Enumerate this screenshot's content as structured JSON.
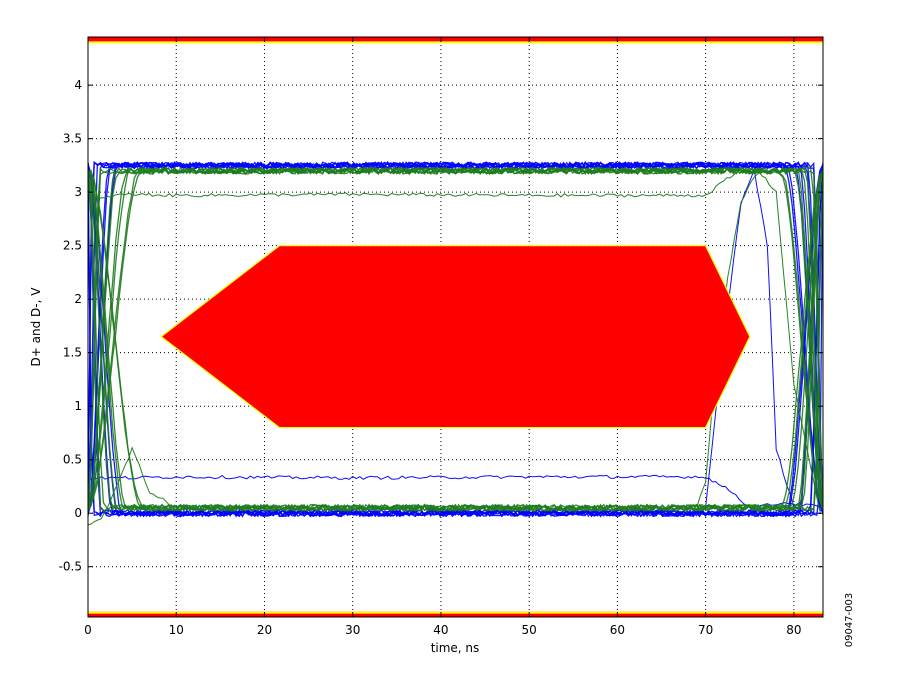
{
  "chart_data": {
    "type": "line",
    "title": "",
    "xlabel": "time, ns",
    "ylabel": "D+ and D-, V",
    "xlim": [
      0,
      83.3
    ],
    "ylim": [
      -0.97,
      4.45
    ],
    "x_ticks": [
      0,
      10,
      20,
      30,
      40,
      50,
      60,
      70,
      80
    ],
    "y_ticks": [
      -0.5,
      0,
      0.5,
      1,
      1.5,
      2,
      2.5,
      3,
      3.5,
      4
    ],
    "x_tick_labels": [
      "0",
      "10",
      "20",
      "30",
      "40",
      "50",
      "60",
      "70",
      "80"
    ],
    "y_tick_labels": [
      "-0.5",
      "0",
      "0.5",
      "1",
      "1.5",
      "2",
      "2.5",
      "3",
      "3.5",
      "4"
    ],
    "grid": true,
    "eye_mask": {
      "points": [
        [
          8.3,
          1.65
        ],
        [
          21.7,
          2.5
        ],
        [
          70.0,
          2.5
        ],
        [
          75.0,
          1.65
        ],
        [
          70.0,
          0.8
        ],
        [
          21.7,
          0.8
        ]
      ],
      "color": "#ff0000",
      "edge_color": "#ffff00"
    },
    "limit_bands": [
      {
        "name": "upper-limit",
        "y_range": [
          4.4,
          4.45
        ],
        "color": "#ff0000"
      },
      {
        "name": "lower-limit",
        "y_range": [
          -0.97,
          -0.92
        ],
        "color": "#ff0000"
      }
    ],
    "series": [
      {
        "color": "#0000ff",
        "high": 3.25,
        "low": 0.0,
        "edge_start": [
          0.2,
          1.4,
          2.5,
          3.5
        ],
        "edge_end": [
          79.0,
          80.5,
          81.5,
          82.5
        ],
        "stray_traces": [
          {
            "x": [
              0,
              5,
              10,
              30,
              50,
              70,
              73,
              75,
              79,
              83
            ],
            "y": [
              0.33,
              0.33,
              0.34,
              0.33,
              0.34,
              0.34,
              0.2,
              0.05,
              0.1,
              0.06
            ]
          },
          {
            "x": [
              70,
              72,
              74,
              75.5,
              77,
              78,
              80,
              83
            ],
            "y": [
              0.05,
              1.6,
              2.9,
              3.2,
              2.5,
              0.6,
              0.05,
              0.0
            ]
          }
        ]
      },
      {
        "color": "#1e7b1e",
        "high": 3.2,
        "low": 0.05,
        "edge_start": [
          1.5,
          3.0,
          4.5,
          6.0
        ],
        "edge_end": [
          78.5,
          80.0,
          81.0,
          82.2
        ],
        "stray_traces": [
          {
            "x": [
              0,
              3,
              5,
              10,
              30,
              50,
              68,
              70,
              72,
              74,
              76,
              78,
              80,
              83
            ],
            "y": [
              2.9,
              2.97,
              2.98,
              2.97,
              2.98,
              2.97,
              2.97,
              2.97,
              3.1,
              3.2,
              3.2,
              3.0,
              1.2,
              0.0
            ]
          },
          {
            "x": [
              69,
              70,
              71,
              72.5,
              74,
              75.5,
              77
            ],
            "y": [
              0.05,
              0.3,
              1.2,
              2.2,
              2.9,
              3.15,
              3.2
            ]
          },
          {
            "x": [
              0,
              1.5,
              3,
              5,
              7,
              10,
              14,
              20
            ],
            "y": [
              -0.1,
              -0.05,
              0.2,
              0.6,
              0.2,
              0.05,
              0.04,
              0.05
            ]
          }
        ]
      }
    ]
  },
  "figure_id": "09047-003"
}
